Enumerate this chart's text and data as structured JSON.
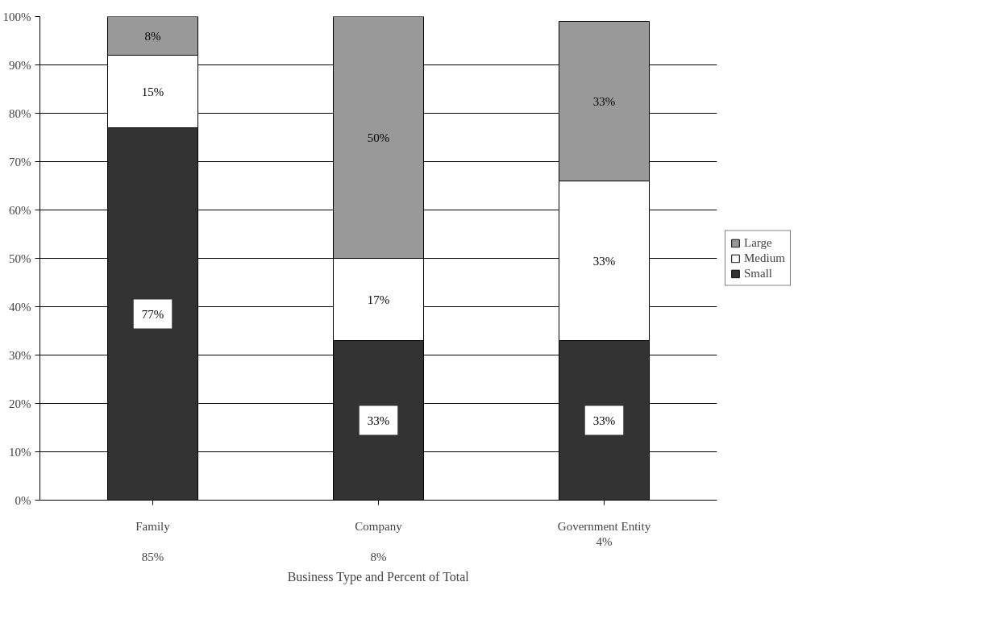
{
  "chart_data": {
    "type": "bar",
    "stacked": true,
    "xlabel": "Business Type and Percent of Total",
    "categories": [
      "Family\n\n85%",
      "Company\n\n8%",
      "Government Entity\n4%"
    ],
    "series": [
      {
        "name": "Small",
        "color": "#333333",
        "values": [
          77,
          33,
          33
        ],
        "value_labels": [
          "77%",
          "33%",
          "33%"
        ]
      },
      {
        "name": "Medium",
        "color": "#ffffff",
        "values": [
          15,
          17,
          33
        ],
        "value_labels": [
          "15%",
          "17%",
          "33%"
        ]
      },
      {
        "name": "Large",
        "color": "#999999",
        "values": [
          8,
          50,
          33
        ],
        "value_labels": [
          "8%",
          "50%",
          "33%"
        ]
      }
    ],
    "ylim": [
      0,
      100
    ],
    "yticks": [
      {
        "value": 0,
        "label": "0%"
      },
      {
        "value": 10,
        "label": "10%"
      },
      {
        "value": 20,
        "label": "20%"
      },
      {
        "value": 30,
        "label": "30%"
      },
      {
        "value": 40,
        "label": "40%"
      },
      {
        "value": 50,
        "label": "50%"
      },
      {
        "value": 60,
        "label": "60%"
      },
      {
        "value": 70,
        "label": "70%"
      },
      {
        "value": 80,
        "label": "80%"
      },
      {
        "value": 90,
        "label": "90%"
      },
      {
        "value": 100,
        "label": "100%"
      }
    ],
    "grid": "y",
    "legend": "right"
  }
}
